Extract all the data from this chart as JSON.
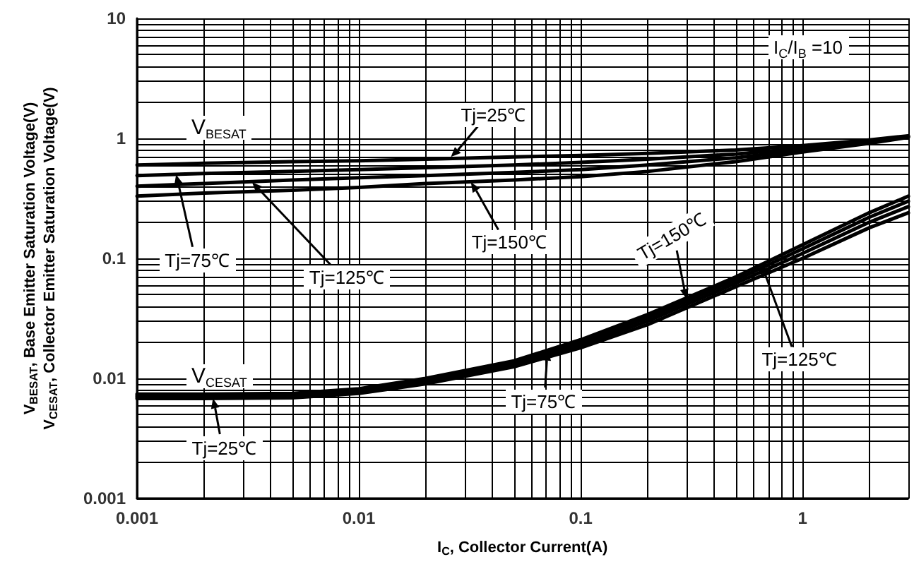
{
  "chart_data": {
    "type": "line",
    "xlabel": "I$_{C}$, Collector Current(A)",
    "ylabel": "V$_{BESAT}$, Base Emitter  Saturation Voltage(V)\nV$_{CESAT}$, Collector Emitter Saturation Voltage(V)",
    "x": [
      0.001,
      0.002,
      0.005,
      0.01,
      0.02,
      0.05,
      0.1,
      0.2,
      0.5,
      1,
      2,
      3
    ],
    "series": [
      {
        "color": "#000000",
        "values": [
          0.6,
          0.62,
          0.64,
          0.65,
          0.67,
          0.7,
          0.72,
          0.75,
          0.8,
          0.87,
          0.97,
          1.05
        ]
      },
      {
        "color": "#000000",
        "values": [
          0.49,
          0.51,
          0.53,
          0.55,
          0.57,
          0.6,
          0.63,
          0.67,
          0.74,
          0.83,
          0.95,
          1.04
        ]
      },
      {
        "color": "#000000",
        "values": [
          0.4,
          0.42,
          0.45,
          0.47,
          0.49,
          0.52,
          0.55,
          0.6,
          0.69,
          0.8,
          0.93,
          1.03
        ]
      },
      {
        "color": "#000000",
        "values": [
          0.33,
          0.35,
          0.37,
          0.39,
          0.42,
          0.45,
          0.48,
          0.53,
          0.64,
          0.77,
          0.91,
          1.02
        ]
      },
      {
        "color": "#000000",
        "values": [
          0.0068,
          0.0068,
          0.0069,
          0.0075,
          0.009,
          0.0125,
          0.018,
          0.028,
          0.058,
          0.1,
          0.18,
          0.24
        ]
      },
      {
        "color": "#000000",
        "values": [
          0.007,
          0.007,
          0.0071,
          0.0078,
          0.0094,
          0.013,
          0.019,
          0.03,
          0.062,
          0.11,
          0.2,
          0.27
        ]
      },
      {
        "color": "#000000",
        "values": [
          0.0072,
          0.0072,
          0.0073,
          0.008,
          0.0097,
          0.0135,
          0.02,
          0.032,
          0.066,
          0.12,
          0.22,
          0.3
        ]
      },
      {
        "color": "#000000",
        "values": [
          0.0074,
          0.0074,
          0.0075,
          0.0082,
          0.01,
          0.014,
          0.021,
          0.034,
          0.07,
          0.13,
          0.24,
          0.33
        ]
      }
    ],
    "xlim": [
      0.001,
      3
    ],
    "xticks": [
      0.001,
      0.01,
      0.1,
      1
    ],
    "ylim": [
      0.001,
      10
    ],
    "yticks": [
      0.001,
      0.01,
      0.1,
      1,
      10
    ],
    "log": "xy",
    "grid": true,
    "marker": "none",
    "line_style": "solid",
    "annotations": [
      "V$_{BESAT}$",
      "V$_{CESAT}$",
      "I$_{C}$/I$_{B}$ =10",
      {
        "text": "Tj=25℃",
        "x": 0.026,
        "y": 0.7
      },
      {
        "text": "Tj=75℃",
        "x": 0.0015,
        "y": 0.5
      },
      {
        "text": "Tj=125℃",
        "x": 0.0033,
        "y": 0.43
      },
      {
        "text": "Tj=150℃",
        "x": 0.032,
        "y": 0.43
      },
      {
        "text": "Tj=150℃",
        "x": 0.3,
        "y": 0.046
      },
      {
        "text": "Tj=125℃",
        "x": 0.65,
        "y": 0.09
      },
      {
        "text": "Tj=75℃",
        "x": 0.071,
        "y": 0.017
      },
      {
        "text": "Tj=25℃",
        "x": 0.0022,
        "y": 0.0068
      }
    ]
  }
}
